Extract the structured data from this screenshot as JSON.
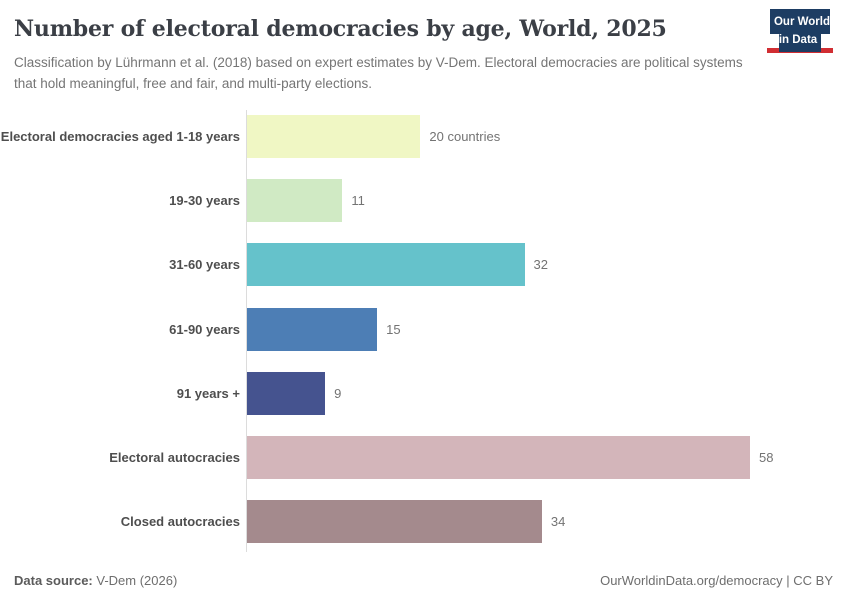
{
  "header": {
    "title": "Number of electoral democracies by age, World, 2025",
    "subtitle": "Classification by Lührmann et al. (2018) based on expert estimates by V-Dem. Electoral democracies are political systems that hold meaningful, free and fair, and multi-party elections.",
    "logo": {
      "line1": "Our World",
      "line2": "in Data",
      "bg_color": "#1d3d63",
      "accent_color": "#d12e33"
    }
  },
  "chart_data": {
    "type": "bar",
    "orientation": "horizontal",
    "title": "Number of electoral democracies by age, World, 2025",
    "categories": [
      "Electoral democracies aged 1-18 years",
      "19-30 years",
      "31-60 years",
      "61-90 years",
      "91 years +",
      "Electoral autocracies",
      "Closed autocracies"
    ],
    "values": [
      20,
      11,
      32,
      15,
      9,
      58,
      34
    ],
    "value_labels": [
      "20 countries",
      "11",
      "32",
      "15",
      "9",
      "58",
      "34"
    ],
    "bar_colors": [
      "#f0f7c4",
      "#d0eac4",
      "#65c2cb",
      "#4d7eb5",
      "#45538f",
      "#d3b5ba",
      "#a48a8d"
    ],
    "xlim": [
      0,
      58
    ],
    "grid": false,
    "legend": false,
    "axis_line_color": "#dcdcdc",
    "label_color": "#4e4e4e",
    "value_color": "#737373"
  },
  "footer": {
    "source_label": "Data source:",
    "source_value": "V-Dem (2026)",
    "url": "OurWorldinData.org/democracy",
    "separator": " | ",
    "license": "CC BY"
  }
}
